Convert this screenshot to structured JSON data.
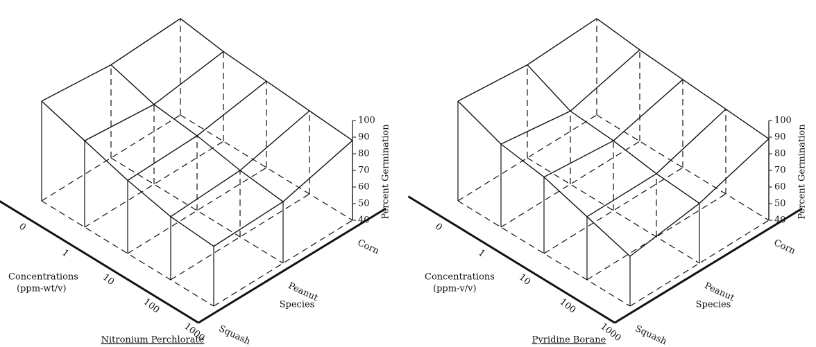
{
  "chart_data": [
    {
      "type": "surface3d",
      "title": "Nitronium Perchlorate",
      "xlabel": [
        "Concentrations",
        "(ppm-wt/v)"
      ],
      "ylabel": "Species",
      "zlabel": "Percent Germination",
      "categories": [
        "0",
        "1",
        "10",
        "100",
        "1000"
      ],
      "series": [
        {
          "name": "Squash",
          "color": "#111111",
          "values": [
            100,
            92,
            84,
            78,
            76
          ]
        },
        {
          "name": "Peanut",
          "color": "#111111",
          "values": [
            96,
            88,
            85,
            80,
            77
          ]
        },
        {
          "name": "Corn",
          "color": "#111111",
          "values": [
            98,
            94,
            92,
            90,
            88
          ]
        }
      ],
      "zlim": [
        40,
        100
      ],
      "zticks": [
        40,
        50,
        60,
        70,
        80,
        90,
        100
      ]
    },
    {
      "type": "surface3d",
      "title": "Pyridine Borane",
      "xlabel": [
        "Concentrations",
        "(ppm-v/v)"
      ],
      "ylabel": "Species",
      "zlabel": "Percent Germination",
      "categories": [
        "0",
        "1",
        "10",
        "100",
        "1000"
      ],
      "series": [
        {
          "name": "Squash",
          "color": "#111111",
          "values": [
            100,
            90,
            86,
            78,
            70
          ]
        },
        {
          "name": "Peanut",
          "color": "#111111",
          "values": [
            96,
            84,
            82,
            78,
            76
          ]
        },
        {
          "name": "Corn",
          "color": "#111111",
          "values": [
            98,
            95,
            93,
            91,
            89
          ]
        }
      ],
      "zlim": [
        40,
        100
      ],
      "zticks": [
        40,
        50,
        60,
        70,
        80,
        90,
        100
      ]
    }
  ]
}
